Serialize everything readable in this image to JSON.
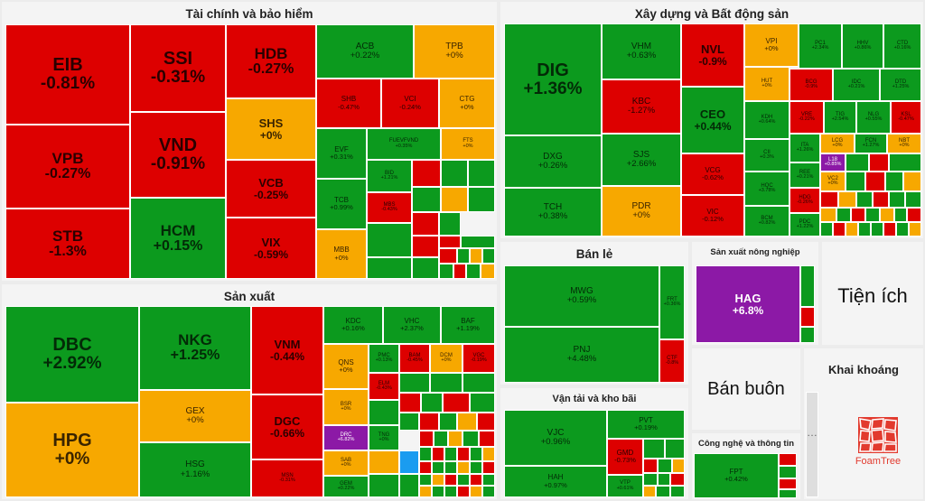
{
  "sections": {
    "finance": "Tài chính và bảo hiểm",
    "construction": "Xây dựng và Bất động sản",
    "manufacturing": "Sản xuất",
    "retail": "Bán lẻ",
    "agriculture": "Sản xuất nông nghiệp",
    "utilities": "Tiện ích",
    "wholesale": "Bán buôn",
    "mining": "Khai khoáng",
    "transport": "Vận tải và kho bãi",
    "tech": "Công nghệ và thông tin"
  },
  "finance_tiles": [
    {
      "t": "EIB",
      "v": "-0.81%"
    },
    {
      "t": "VPB",
      "v": "-0.27%"
    },
    {
      "t": "STB",
      "v": "-1.3%"
    },
    {
      "t": "SSI",
      "v": "-0.31%"
    },
    {
      "t": "VND",
      "v": "-0.91%"
    },
    {
      "t": "HCM",
      "v": "+0.15%"
    },
    {
      "t": "HDB",
      "v": "-0.27%"
    },
    {
      "t": "SHS",
      "v": "+0%"
    },
    {
      "t": "VCB",
      "v": "-0.25%"
    },
    {
      "t": "VIX",
      "v": "-0.59%"
    },
    {
      "t": "ACB",
      "v": "+0.22%"
    },
    {
      "t": "TPB",
      "v": "+0%"
    },
    {
      "t": "SHB",
      "v": "-0.47%"
    },
    {
      "t": "VCI",
      "v": "-0.24%"
    },
    {
      "t": "CTG",
      "v": "+0%"
    },
    {
      "t": "EVF",
      "v": "+0.31%"
    },
    {
      "t": "FUEVFVND",
      "v": "+0.35%"
    },
    {
      "t": "FTS",
      "v": "+0%"
    },
    {
      "t": "TCB",
      "v": "+0.99%"
    },
    {
      "t": "BID",
      "v": "+1.21%"
    },
    {
      "t": "MBS",
      "v": "-0.43%"
    },
    {
      "t": "MBB",
      "v": "+0%"
    }
  ],
  "construction_tiles": [
    {
      "t": "DIG",
      "v": "+1.36%"
    },
    {
      "t": "DXG",
      "v": "+0.26%"
    },
    {
      "t": "TCH",
      "v": "+0.38%"
    },
    {
      "t": "VHM",
      "v": "+0.63%"
    },
    {
      "t": "KBC",
      "v": "-1.27%"
    },
    {
      "t": "SJS",
      "v": "+2.66%"
    },
    {
      "t": "PDR",
      "v": "+0%"
    },
    {
      "t": "NVL",
      "v": "-0.9%"
    },
    {
      "t": "CEO",
      "v": "+0.44%"
    },
    {
      "t": "VCG",
      "v": "-0.62%"
    },
    {
      "t": "VIC",
      "v": "-0.12%"
    },
    {
      "t": "VPI",
      "v": "+0%"
    },
    {
      "t": "HUT",
      "v": "+0%"
    },
    {
      "t": "KDH",
      "v": "+0.64%"
    },
    {
      "t": "CII",
      "v": "+0.3%"
    },
    {
      "t": "HQC",
      "v": "+3.78%"
    },
    {
      "t": "BCM",
      "v": "+0.82%"
    },
    {
      "t": "PC1",
      "v": "+2.34%"
    },
    {
      "t": "HHV",
      "v": "+0.86%"
    },
    {
      "t": "CTD",
      "v": "+0.16%"
    },
    {
      "t": "BCG",
      "v": "-0.9%"
    },
    {
      "t": "IDC",
      "v": "+0.21%"
    },
    {
      "t": "DTD",
      "v": "+1.25%"
    },
    {
      "t": "VRE",
      "v": "-0.22%"
    },
    {
      "t": "TIG",
      "v": "+2.54%"
    },
    {
      "t": "NLG",
      "v": "+0.55%"
    },
    {
      "t": "KSL",
      "v": "-0.47%"
    },
    {
      "t": "ITA",
      "v": "+1.26%"
    },
    {
      "t": "LCG",
      "v": "+0%"
    },
    {
      "t": "FCN",
      "v": "+1.27%"
    },
    {
      "t": "NBT",
      "v": "+0%"
    },
    {
      "t": "REE",
      "v": "+0.21%"
    },
    {
      "t": "L18",
      "v": "+0.85%"
    },
    {
      "t": "HDG",
      "v": "-0.26%"
    },
    {
      "t": "VC2",
      "v": "+0%"
    },
    {
      "t": "PDC",
      "v": "+1.22%"
    }
  ],
  "manufacturing_tiles": [
    {
      "t": "DBC",
      "v": "+2.92%"
    },
    {
      "t": "HPG",
      "v": "+0%"
    },
    {
      "t": "NKG",
      "v": "+1.25%"
    },
    {
      "t": "GEX",
      "v": "+0%"
    },
    {
      "t": "HSG",
      "v": "+1.16%"
    },
    {
      "t": "VNM",
      "v": "-0.44%"
    },
    {
      "t": "DGC",
      "v": "-0.66%"
    },
    {
      "t": "MSN",
      "v": "-0.31%"
    },
    {
      "t": "KDC",
      "v": "+0.16%"
    },
    {
      "t": "VHC",
      "v": "+2.37%"
    },
    {
      "t": "BAF",
      "v": "+1.19%"
    },
    {
      "t": "QNS",
      "v": "+0%"
    },
    {
      "t": "PMC",
      "v": "+0.13%"
    },
    {
      "t": "BAM",
      "v": "-0.45%"
    },
    {
      "t": "DCM",
      "v": "+0%"
    },
    {
      "t": "VGC",
      "v": "-0.19%"
    },
    {
      "t": "BSR",
      "v": "+0%"
    },
    {
      "t": "ELM",
      "v": "-0.43%"
    },
    {
      "t": "DRC",
      "v": "+6.82%"
    },
    {
      "t": "TNG",
      "v": "+0%"
    },
    {
      "t": "SAB",
      "v": "+0%"
    },
    {
      "t": "GEM",
      "v": "+0.22%"
    }
  ],
  "retail_tiles": [
    {
      "t": "MWG",
      "v": "+0.59%"
    },
    {
      "t": "PNJ",
      "v": "+4.48%"
    },
    {
      "t": "FRT",
      "v": "+0.36%"
    },
    {
      "t": "CTF",
      "v": "-0.8%"
    }
  ],
  "agriculture_tiles": [
    {
      "t": "HAG",
      "v": "+6.8%"
    }
  ],
  "transport_tiles": [
    {
      "t": "VJC",
      "v": "+0.96%"
    },
    {
      "t": "HAH",
      "v": "+0.97%"
    },
    {
      "t": "PVT",
      "v": "+0.19%"
    },
    {
      "t": "GMD",
      "v": "-0.73%"
    },
    {
      "t": "VTP",
      "v": "+0.61%"
    }
  ],
  "tech_tiles": [
    {
      "t": "FPT",
      "v": "+0.42%"
    }
  ],
  "ellipsis": "…",
  "logo_text": "FoamTree"
}
